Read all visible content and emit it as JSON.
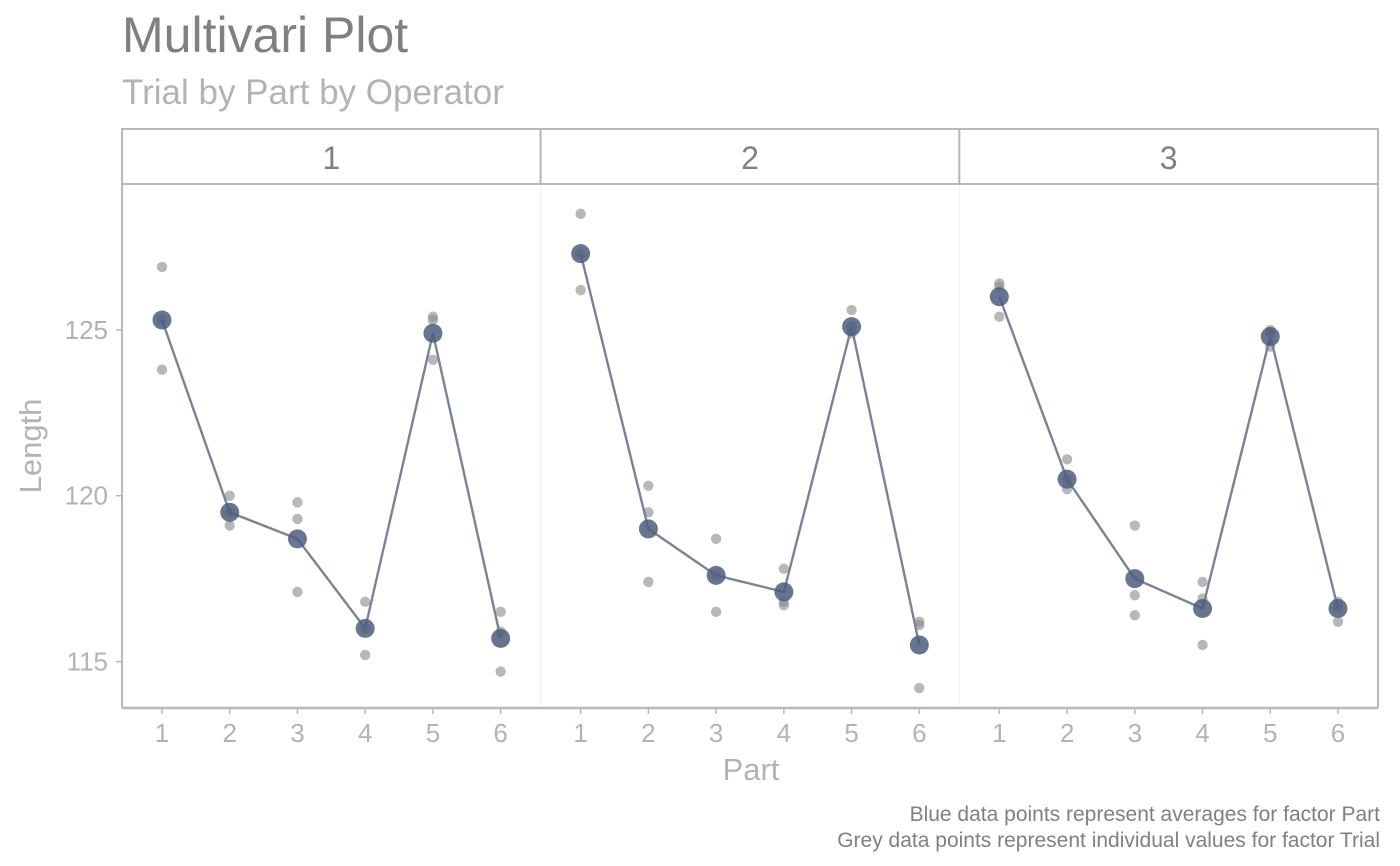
{
  "chart_data": {
    "type": "scatter",
    "title": "Multivari Plot",
    "subtitle": "Trial by Part by Operator",
    "xlabel": "Part",
    "ylabel": "Length",
    "yticks": [
      115,
      120,
      125
    ],
    "ylim": [
      113.6,
      129.4
    ],
    "parts": [
      "1",
      "2",
      "3",
      "4",
      "5",
      "6"
    ],
    "grid": false,
    "legend": "none",
    "colors": {
      "mean_point": "#4e5d7e",
      "mean_line": "#7a8396",
      "individual_point": "#8c8c8c",
      "frame": "#b8b8b8"
    },
    "facets": [
      {
        "operator": "1",
        "means": [
          125.3,
          119.5,
          118.7,
          116.0,
          124.9,
          115.7
        ],
        "trials": [
          [
            126.9,
            125.3,
            123.8
          ],
          [
            120.0,
            119.5,
            119.1
          ],
          [
            119.8,
            119.3,
            117.1
          ],
          [
            116.8,
            116.0,
            115.2
          ],
          [
            125.4,
            125.3,
            124.1
          ],
          [
            116.5,
            115.9,
            114.7
          ]
        ]
      },
      {
        "operator": "2",
        "means": [
          127.3,
          119.0,
          117.6,
          117.1,
          125.1,
          115.5
        ],
        "trials": [
          [
            128.5,
            127.3,
            126.2
          ],
          [
            120.3,
            119.5,
            117.4
          ],
          [
            118.7,
            117.6,
            116.5
          ],
          [
            117.8,
            116.8,
            116.7
          ],
          [
            125.6,
            125.1,
            124.9
          ],
          [
            116.2,
            116.1,
            114.2
          ]
        ]
      },
      {
        "operator": "3",
        "means": [
          126.0,
          120.5,
          117.5,
          116.6,
          124.8,
          116.6
        ],
        "trials": [
          [
            126.4,
            126.3,
            125.4
          ],
          [
            121.1,
            120.5,
            120.2
          ],
          [
            119.1,
            117.0,
            116.4
          ],
          [
            117.4,
            116.9,
            115.5
          ],
          [
            125.0,
            124.9,
            124.5
          ],
          [
            116.8,
            116.6,
            116.2
          ]
        ]
      }
    ],
    "caption": [
      "Blue data points represent averages for factor Part",
      "Grey data points represent individual values for factor Trial"
    ]
  }
}
